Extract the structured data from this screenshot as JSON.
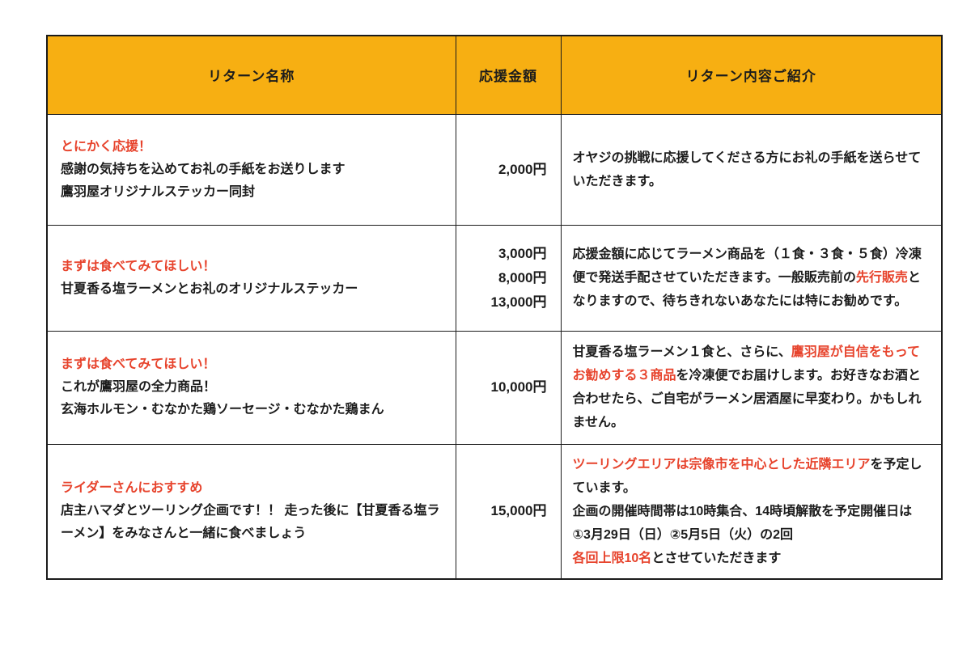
{
  "colors": {
    "header_bg": "#F7AF12",
    "accent_red": "#E7432C",
    "text": "#1C1C1C",
    "border": "#1B1B1B",
    "page_bg": "#FFFFFF"
  },
  "table": {
    "columns": [
      "リターン名称",
      "応援金額",
      "リターン内容ご紹介"
    ],
    "rows": [
      {
        "title": "とにかく応援！",
        "name_lines": [
          "感謝の気持ちを込めてお礼の手紙をお送りします",
          "鷹羽屋オリジナルステッカー同封"
        ],
        "amounts": [
          "2,000円"
        ],
        "description": [
          [
            {
              "t": "オヤジの挑戦に応援してくださる方にお礼の手紙を送らせていただきます。",
              "red": false
            }
          ]
        ]
      },
      {
        "title": "まずは食べてみてほしい！",
        "name_lines": [
          "甘夏香る塩ラーメンとお礼のオリジナルステッカー"
        ],
        "amounts": [
          "3,000円",
          "8,000円",
          "13,000円"
        ],
        "description": [
          [
            {
              "t": "応援金額に応じてラーメン商品を（１食・３食・５食）冷凍便で発送手配させていただきます。一般販売前の",
              "red": false
            },
            {
              "t": "先行販売",
              "red": true
            },
            {
              "t": "となりますので、待ちきれないあなたには特にお勧めです。",
              "red": false
            }
          ]
        ]
      },
      {
        "title": "まずは食べてみてほしい！",
        "name_lines": [
          "これが鷹羽屋の全力商品！",
          "玄海ホルモン・むなかた鶏ソーセージ・むなかた鶏まん"
        ],
        "amounts": [
          "10,000円"
        ],
        "description": [
          [
            {
              "t": "甘夏香る塩ラーメン１食と、さらに、",
              "red": false
            },
            {
              "t": "鷹羽屋が自信をもってお勧めする３商品",
              "red": true
            },
            {
              "t": "を冷凍便でお届けします。お好きなお酒と合わせたら、ご自宅がラーメン居酒屋に早変わり。かもしれません。",
              "red": false
            }
          ]
        ]
      },
      {
        "title": "ライダーさんにおすすめ",
        "name_lines": [
          "店主ハマダとツーリング企画です！！ 走った後に【甘夏香る塩ラーメン】をみなさんと一緒に食べましょう"
        ],
        "amounts": [
          "15,000円"
        ],
        "description": [
          [
            {
              "t": "ツーリングエリアは宗像市を中心とした近隣エリア",
              "red": true
            },
            {
              "t": "を予定しています。",
              "red": false
            }
          ],
          [
            {
              "t": "企画の開催時間帯は10時集合、14時頃解散を予定開催日は　①3月29日（日）②5月5日（火）の2回",
              "red": false
            }
          ],
          [
            {
              "t": "各回上限10名",
              "red": true
            },
            {
              "t": "とさせていただきます",
              "red": false
            }
          ]
        ]
      }
    ]
  }
}
